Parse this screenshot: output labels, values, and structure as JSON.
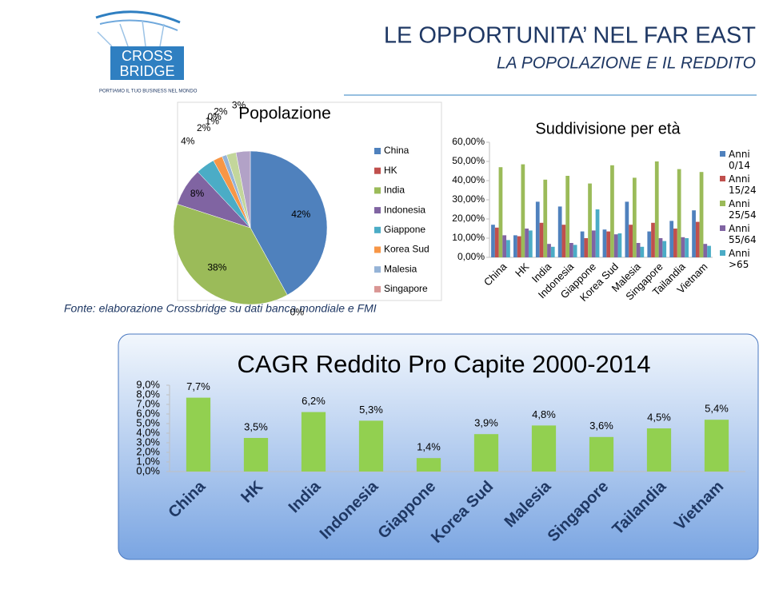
{
  "logo": {
    "line1": "CROSS",
    "line2": "BRIDGE",
    "tagline": "PORTIAMO IL TUO BUSINESS NEL MONDO"
  },
  "header": {
    "title": "LE OPPORTUNITA’ NEL FAR EAST",
    "subtitle": "LA POPOLAZIONE E IL REDDITO"
  },
  "source": "Fonte: elaborazione Crossbridge su dati banca mondiale e FMI",
  "chart_data": [
    {
      "type": "pie",
      "title": "Popolazione",
      "categories": [
        "China",
        "HK",
        "India",
        "Indonesia",
        "Giappone",
        "Korea Sud",
        "Malesia",
        "Singapore",
        null,
        null
      ],
      "values": [
        42,
        0,
        38,
        8,
        4,
        2,
        1,
        0,
        2,
        3
      ],
      "value_labels": [
        "42%",
        "0%",
        "38%",
        "8%",
        "4%",
        "2%",
        "1%",
        "0%",
        "2%",
        "3%"
      ],
      "colors": [
        "#4f81bd",
        "#c0504d",
        "#9bbb59",
        "#8064a2",
        "#4bacc6",
        "#f79646",
        "#95b3d7",
        "#d99694",
        "#c3d69b",
        "#b2a2c7"
      ]
    },
    {
      "type": "bar",
      "title": "Suddivisione per età",
      "categories": [
        "China",
        "HK",
        "India",
        "Indonesia",
        "Giappone",
        "Korea Sud",
        "Malesia",
        "Singapore",
        "Tailandia",
        "Vietnam"
      ],
      "series": [
        {
          "name": "Anni 0/14",
          "color": "#4f81bd",
          "values": [
            17,
            11.5,
            29,
            26.5,
            13.5,
            14.5,
            29,
            13.5,
            19,
            24.5
          ]
        },
        {
          "name": "Anni 15/24",
          "color": "#c0504d",
          "values": [
            15.5,
            11,
            18,
            17,
            10,
            13.5,
            17,
            18,
            15,
            18.5
          ]
        },
        {
          "name": "Anni 25/54",
          "color": "#9bbb59",
          "values": [
            47,
            48.5,
            40.5,
            42.5,
            38.5,
            48,
            41.5,
            50,
            46,
            44.5
          ]
        },
        {
          "name": "Anni 55/64",
          "color": "#8064a2",
          "values": [
            11.5,
            15,
            7,
            7.5,
            14,
            12,
            7.5,
            10,
            10.5,
            7
          ]
        },
        {
          "name": "Anni >65",
          "color": "#4bacc6",
          "values": [
            9,
            14,
            5.5,
            6.5,
            25,
            12.5,
            5.5,
            8.5,
            10,
            6
          ]
        }
      ],
      "ylim": [
        0,
        60
      ],
      "yticks": [
        {
          "value": 0,
          "label": "0,00%"
        },
        {
          "value": 10,
          "label": "10,00%"
        },
        {
          "value": 20,
          "label": "20,00%"
        },
        {
          "value": 30,
          "label": "30,00%"
        },
        {
          "value": 40,
          "label": "40,00%"
        },
        {
          "value": 50,
          "label": "50,00%"
        },
        {
          "value": 60,
          "label": "60,00%"
        }
      ]
    },
    {
      "type": "bar",
      "title": "CAGR Reddito Pro Capite 2000-2014",
      "categories": [
        "China",
        "HK",
        "India",
        "Indonesia",
        "Giappone",
        "Korea Sud",
        "Malesia",
        "Singapore",
        "Tailandia",
        "Vietnam"
      ],
      "values": [
        7.7,
        3.5,
        6.2,
        5.3,
        1.4,
        3.9,
        4.8,
        3.6,
        4.5,
        5.4
      ],
      "value_labels": [
        "7,7%",
        "3,5%",
        "6,2%",
        "5,3%",
        "1,4%",
        "3,9%",
        "4,8%",
        "3,6%",
        "4,5%",
        "5,4%"
      ],
      "color": "#92d050",
      "ylim": [
        0,
        9
      ],
      "yticks": [
        {
          "value": 0,
          "label": "0,0%"
        },
        {
          "value": 1,
          "label": "1,0%"
        },
        {
          "value": 2,
          "label": "2,0%"
        },
        {
          "value": 3,
          "label": "3,0%"
        },
        {
          "value": 4,
          "label": "4,0%"
        },
        {
          "value": 5,
          "label": "5,0%"
        },
        {
          "value": 6,
          "label": "6,0%"
        },
        {
          "value": 7,
          "label": "7,0%"
        },
        {
          "value": 8,
          "label": "8,0%"
        },
        {
          "value": 9,
          "label": "9,0%"
        }
      ]
    }
  ]
}
